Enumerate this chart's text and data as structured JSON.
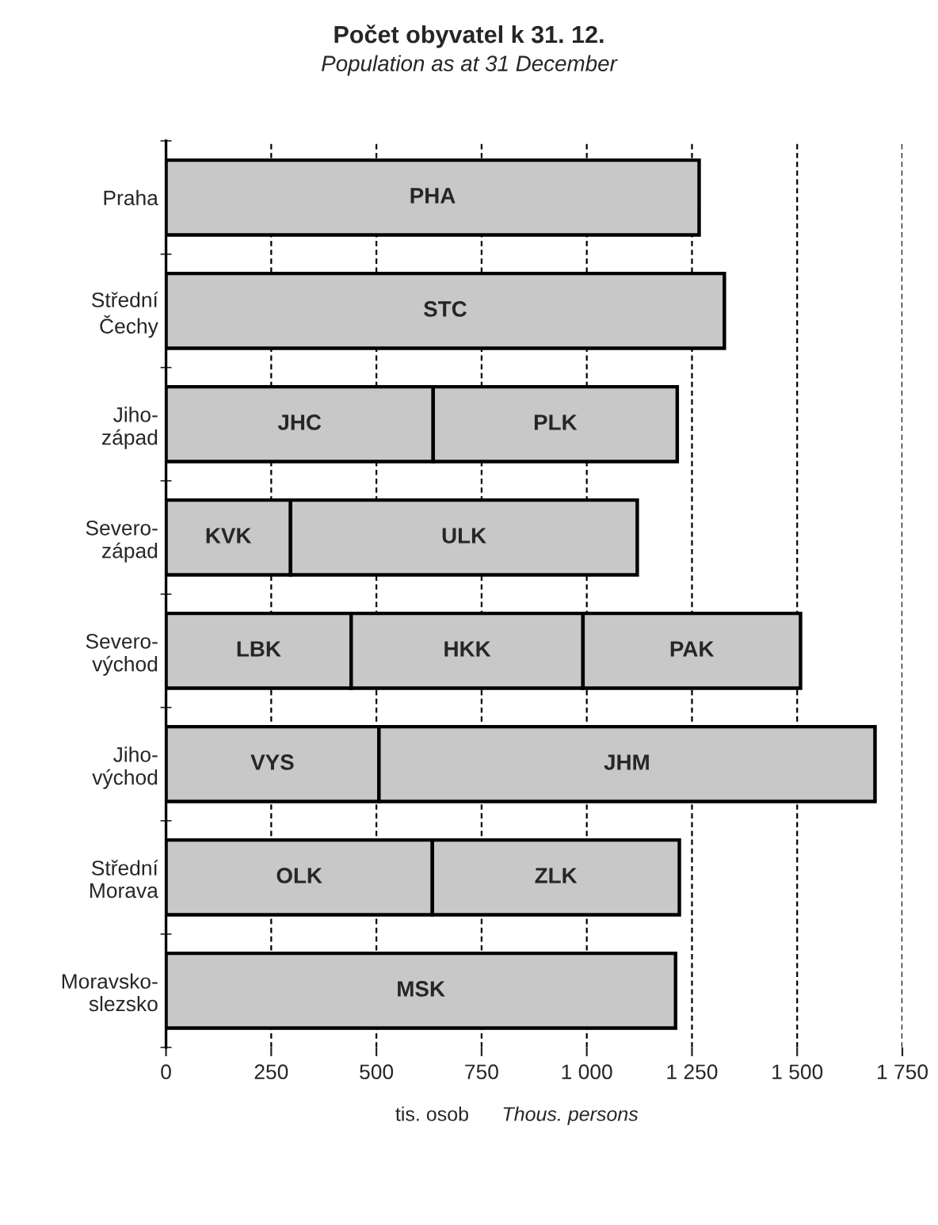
{
  "chart_data": {
    "type": "bar",
    "orientation": "horizontal",
    "stacked": true,
    "title": "Počet obyvatel k 31. 12.",
    "subtitle": "Population as at 31 December",
    "xlabel": "tis. osob",
    "annotations": [
      "Thous. persons"
    ],
    "categories": [
      "Praha",
      "Střední\nČechy",
      "Jiho-\nzápad",
      "Severo-\nzápad",
      "Severo-\nvýchod",
      "Jiho-\nvýchod",
      "Střední\nMorava",
      "Moravsko-\nslezsko"
    ],
    "series": [
      {
        "color": "#c8c8c8",
        "values": [
          1267,
          1327,
          635,
          296,
          440,
          506,
          633,
          1211
        ],
        "value_labels": [
          "PHA",
          "STC",
          "JHC",
          "KVK",
          "LBK",
          "VYS",
          "OLK",
          "MSK"
        ]
      },
      {
        "color": "#c8c8c8",
        "values": [
          null,
          null,
          580,
          824,
          551,
          1179,
          587,
          null
        ],
        "value_labels": [
          null,
          null,
          "PLK",
          "ULK",
          "HKK",
          "JHM",
          "ZLK",
          null
        ]
      },
      {
        "color": "#c8c8c8",
        "values": [
          null,
          null,
          null,
          null,
          517,
          null,
          null,
          null
        ],
        "value_labels": [
          null,
          null,
          null,
          null,
          "PAK",
          null,
          null,
          null
        ]
      }
    ],
    "xlim": [
      0,
      1750
    ],
    "xticks": [
      0,
      250,
      500,
      750,
      {
        "value": 1000,
        "label": "1 000"
      },
      {
        "value": 1250,
        "label": "1 250"
      },
      {
        "value": 1500,
        "label": "1 500"
      },
      {
        "value": 1750,
        "label": "1 750"
      }
    ],
    "grid": "x",
    "legend": false
  }
}
